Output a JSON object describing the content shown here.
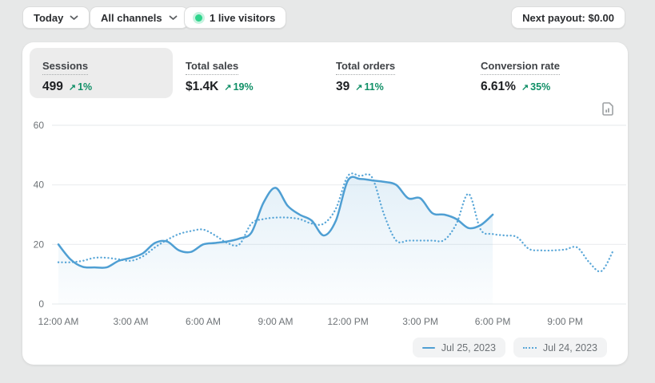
{
  "topbar": {
    "date_filter": {
      "label": "Today"
    },
    "channel_filter": {
      "label": "All channels"
    },
    "live_visitors": {
      "label": "1 live visitors"
    },
    "next_payout": {
      "label": "Next payout: $0.00"
    }
  },
  "icons": {
    "trend_up": "↗"
  },
  "metrics": [
    {
      "label": "Sessions",
      "value": "499",
      "delta": "1%",
      "selected": true
    },
    {
      "label": "Total sales",
      "value": "$1.4K",
      "delta": "19%",
      "selected": false
    },
    {
      "label": "Total orders",
      "value": "39",
      "delta": "11%",
      "selected": false
    },
    {
      "label": "Conversion rate",
      "value": "6.61%",
      "delta": "35%",
      "selected": false
    }
  ],
  "colors": {
    "line_solid": "#4f9fd3",
    "line_dotted": "#5aa7d8",
    "success_green": "#0f8f66",
    "live_dot_green": "#2fd48c",
    "gridline": "#ebedef",
    "axis_text": "#6e7377"
  },
  "chart_data": {
    "type": "line",
    "title": "Sessions",
    "x_axis": {
      "min_hour": 0,
      "max_hour": 24,
      "tick_hours": [
        0,
        3,
        6,
        9,
        12,
        15,
        18,
        21
      ],
      "tick_labels": [
        "12:00 AM",
        "3:00 AM",
        "6:00 AM",
        "9:00 AM",
        "12:00 PM",
        "3:00 PM",
        "6:00 PM",
        "9:00 PM"
      ]
    },
    "y_axis": {
      "min": 0,
      "max": 60,
      "ticks": [
        0,
        20,
        40,
        60
      ]
    },
    "grid": "horizontal-only",
    "legend_position": "bottom-right",
    "series": [
      {
        "name": "Jul 25, 2023",
        "line_style": "solid",
        "area_fill": true,
        "start_hour": 0,
        "step_hours": 0.5,
        "values": [
          20,
          15,
          12.5,
          12.3,
          12.3,
          14.5,
          15.5,
          17,
          20.5,
          21,
          18,
          17.5,
          20,
          20.5,
          21,
          22,
          24,
          34,
          39,
          33,
          30,
          28,
          23,
          28,
          41.5,
          42,
          41.5,
          41,
          40,
          35.5,
          35.5,
          30.5,
          30,
          28.5,
          25.5,
          26.5,
          30
        ]
      },
      {
        "name": "Jul 24, 2023",
        "line_style": "dotted",
        "area_fill": false,
        "start_hour": 0,
        "step_hours": 0.5,
        "values": [
          14,
          14,
          14.5,
          15.5,
          15.5,
          15,
          14.5,
          16,
          19,
          21.5,
          23.5,
          24.5,
          25,
          23,
          20.5,
          20,
          27,
          28.5,
          29,
          29,
          28.5,
          27,
          27,
          32,
          43,
          43,
          42.5,
          30,
          21.3,
          21.3,
          21.3,
          21.3,
          21.5,
          27,
          37,
          25,
          23.5,
          23,
          22.5,
          18.5,
          18,
          18,
          18.3,
          19,
          14,
          11,
          18
        ]
      }
    ]
  }
}
